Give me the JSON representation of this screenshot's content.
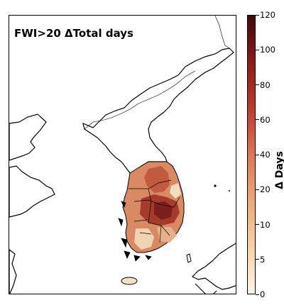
{
  "map": {
    "title": "FWI>20 ΔTotal days",
    "colors": {
      "sea": "#ffffff",
      "coastline": "#000000",
      "land_background": "#ffffff",
      "data_low": "#fdf0dc",
      "data_mid": "#d66a4e",
      "data_high": "#7d1b1b"
    }
  },
  "colorbar": {
    "label": "Δ Days",
    "min": 0,
    "max": 120,
    "colormap": "OrRd-like",
    "stops": [
      "#fdf5e8",
      "#f6d2a6",
      "#eea977",
      "#de7555",
      "#c0392b",
      "#8e1a1a",
      "#3f0a0a"
    ],
    "ticks": [
      {
        "value": 0,
        "label": "0"
      },
      {
        "value": 5,
        "label": "5"
      },
      {
        "value": 10,
        "label": "10"
      },
      {
        "value": 20,
        "label": "20"
      },
      {
        "value": 40,
        "label": "40"
      },
      {
        "value": 60,
        "label": "60"
      },
      {
        "value": 80,
        "label": "80"
      },
      {
        "value": 100,
        "label": "100"
      },
      {
        "value": 120,
        "label": "120"
      }
    ]
  }
}
